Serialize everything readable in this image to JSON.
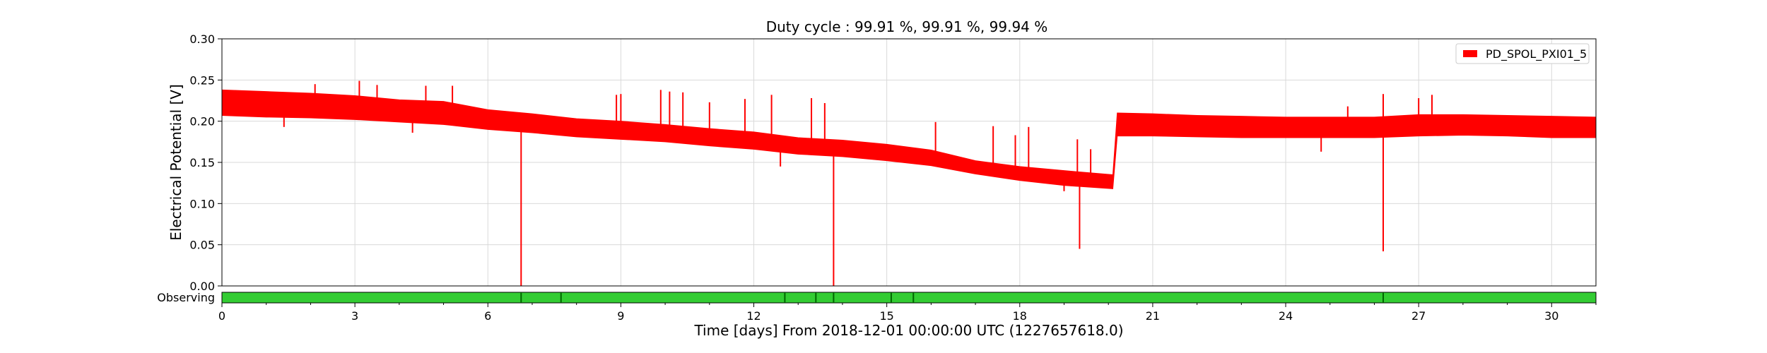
{
  "chart_data": {
    "type": "line",
    "title": "Duty cycle : 99.91 %, 99.91 %, 99.94 %",
    "xlabel": "Time [days] From 2018-12-01 00:00:00 UTC (1227657618.0)",
    "ylabel": "Electrical Potential [V]",
    "xlim": [
      0,
      31
    ],
    "ylim": [
      0,
      0.3
    ],
    "xticks": [
      0,
      3,
      6,
      9,
      12,
      15,
      18,
      21,
      24,
      27,
      30
    ],
    "yticks": [
      0.0,
      0.05,
      0.1,
      0.15,
      0.2,
      0.25,
      0.3
    ],
    "grid": true,
    "legend_position": "top-right",
    "series": [
      {
        "name": "PD_SPOL_PXI01_5",
        "color": "#ff0000",
        "band": [
          {
            "x": 0,
            "low": 0.207,
            "high": 0.238
          },
          {
            "x": 1,
            "low": 0.205,
            "high": 0.236
          },
          {
            "x": 2,
            "low": 0.204,
            "high": 0.234
          },
          {
            "x": 3,
            "low": 0.202,
            "high": 0.231
          },
          {
            "x": 4,
            "low": 0.199,
            "high": 0.226
          },
          {
            "x": 5,
            "low": 0.196,
            "high": 0.224
          },
          {
            "x": 6,
            "low": 0.19,
            "high": 0.214
          },
          {
            "x": 7,
            "low": 0.186,
            "high": 0.209
          },
          {
            "x": 8,
            "low": 0.181,
            "high": 0.203
          },
          {
            "x": 9,
            "low": 0.178,
            "high": 0.2
          },
          {
            "x": 10,
            "low": 0.175,
            "high": 0.196
          },
          {
            "x": 11,
            "low": 0.17,
            "high": 0.191
          },
          {
            "x": 12,
            "low": 0.166,
            "high": 0.187
          },
          {
            "x": 13,
            "low": 0.16,
            "high": 0.18
          },
          {
            "x": 14,
            "low": 0.157,
            "high": 0.177
          },
          {
            "x": 15,
            "low": 0.152,
            "high": 0.172
          },
          {
            "x": 16,
            "low": 0.146,
            "high": 0.165
          },
          {
            "x": 17,
            "low": 0.136,
            "high": 0.152
          },
          {
            "x": 18,
            "low": 0.128,
            "high": 0.145
          },
          {
            "x": 19,
            "low": 0.122,
            "high": 0.14
          },
          {
            "x": 20.1,
            "low": 0.118,
            "high": 0.135
          },
          {
            "x": 20.2,
            "low": 0.182,
            "high": 0.21
          },
          {
            "x": 21,
            "low": 0.182,
            "high": 0.209
          },
          {
            "x": 22,
            "low": 0.181,
            "high": 0.207
          },
          {
            "x": 23,
            "low": 0.18,
            "high": 0.206
          },
          {
            "x": 24,
            "low": 0.18,
            "high": 0.205
          },
          {
            "x": 25,
            "low": 0.18,
            "high": 0.205
          },
          {
            "x": 26,
            "low": 0.18,
            "high": 0.205
          },
          {
            "x": 27,
            "low": 0.182,
            "high": 0.208
          },
          {
            "x": 28,
            "low": 0.183,
            "high": 0.208
          },
          {
            "x": 29,
            "low": 0.182,
            "high": 0.207
          },
          {
            "x": 30,
            "low": 0.18,
            "high": 0.206
          },
          {
            "x": 31,
            "low": 0.18,
            "high": 0.205
          }
        ],
        "spikes": [
          {
            "x": 2.1,
            "y": 0.245
          },
          {
            "x": 3.1,
            "y": 0.249
          },
          {
            "x": 3.5,
            "y": 0.244
          },
          {
            "x": 4.6,
            "y": 0.243
          },
          {
            "x": 5.2,
            "y": 0.243
          },
          {
            "x": 8.9,
            "y": 0.232
          },
          {
            "x": 9.0,
            "y": 0.233
          },
          {
            "x": 9.9,
            "y": 0.238
          },
          {
            "x": 10.1,
            "y": 0.236
          },
          {
            "x": 10.4,
            "y": 0.235
          },
          {
            "x": 11.0,
            "y": 0.223
          },
          {
            "x": 11.8,
            "y": 0.227
          },
          {
            "x": 12.4,
            "y": 0.232
          },
          {
            "x": 13.3,
            "y": 0.228
          },
          {
            "x": 13.6,
            "y": 0.222
          },
          {
            "x": 16.1,
            "y": 0.199
          },
          {
            "x": 17.4,
            "y": 0.194
          },
          {
            "x": 17.9,
            "y": 0.183
          },
          {
            "x": 18.2,
            "y": 0.193
          },
          {
            "x": 19.3,
            "y": 0.178
          },
          {
            "x": 19.6,
            "y": 0.166
          },
          {
            "x": 25.4,
            "y": 0.218
          },
          {
            "x": 26.2,
            "y": 0.233
          },
          {
            "x": 27.0,
            "y": 0.228
          },
          {
            "x": 27.3,
            "y": 0.232
          }
        ],
        "dips": [
          {
            "x": 6.75,
            "y": 0.0
          },
          {
            "x": 13.8,
            "y": 0.0
          },
          {
            "x": 19.35,
            "y": 0.045
          },
          {
            "x": 26.2,
            "y": 0.042
          },
          {
            "x": 1.4,
            "y": 0.193
          },
          {
            "x": 4.3,
            "y": 0.186
          },
          {
            "x": 12.6,
            "y": 0.145
          },
          {
            "x": 19.0,
            "y": 0.115
          },
          {
            "x": 24.8,
            "y": 0.163
          }
        ]
      }
    ],
    "segment_bar": {
      "label": "Observing",
      "color": "#33cc33",
      "gap_color": "#006600",
      "gaps": [
        6.75,
        7.65,
        12.7,
        13.4,
        13.8,
        15.1,
        15.6,
        26.2
      ]
    }
  }
}
